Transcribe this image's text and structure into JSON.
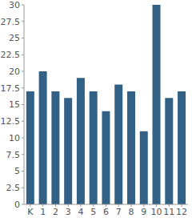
{
  "chart_data": {
    "type": "bar",
    "categories": [
      "K",
      "1",
      "2",
      "3",
      "4",
      "5",
      "6",
      "7",
      "8",
      "9",
      "10",
      "11",
      "12"
    ],
    "values": [
      17,
      20,
      17,
      16,
      19,
      17,
      14,
      18,
      17,
      11,
      30,
      16,
      17
    ],
    "color": "#336186",
    "ylim": [
      0,
      30
    ],
    "yticks": [
      0,
      2.5,
      5,
      7.5,
      10,
      12.5,
      15,
      17.5,
      20,
      22.5,
      25,
      27.5,
      30
    ],
    "grid": false
  }
}
